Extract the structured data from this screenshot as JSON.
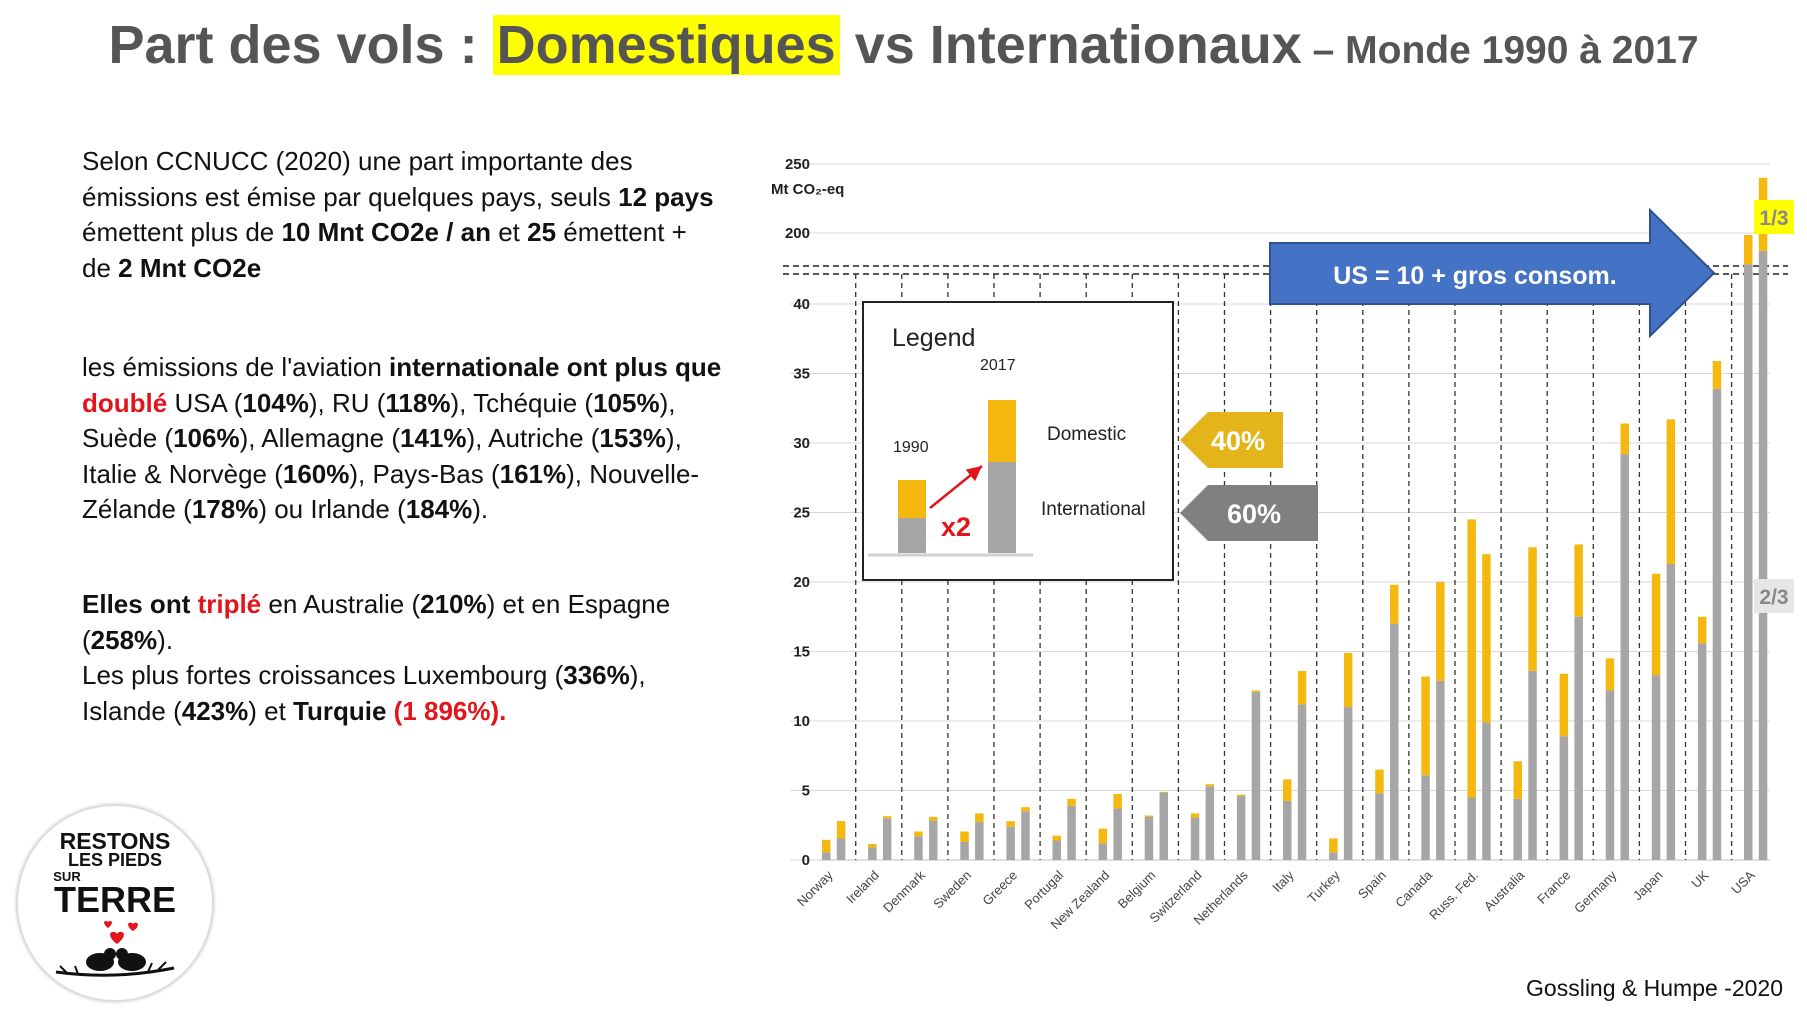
{
  "title": {
    "prefix": "Part des vols : ",
    "highlight": "Domestiques",
    "middle": " vs Internationaux",
    "suffix": " – Monde 1990 à 2017"
  },
  "text": {
    "p1": [
      {
        "t": "Selon CCNUCC (2020) une part importante des émissions est émise par quelques pays, seuls "
      },
      {
        "t": "12 pays",
        "b": true
      },
      {
        "t": " émettent plus de "
      },
      {
        "t": "10 Mnt CO2e / an",
        "b": true
      },
      {
        "t": " et "
      },
      {
        "t": "25",
        "b": true
      },
      {
        "t": " émettent + de "
      },
      {
        "t": "2 Mnt CO2e",
        "b": true
      }
    ],
    "p2": [
      {
        "t": "les émissions de l'aviation "
      },
      {
        "t": "internationale ont plus que ",
        "b": true
      },
      {
        "t": "doublé",
        "r": true
      },
      {
        "t": " USA ("
      },
      {
        "t": "104%",
        "b": true
      },
      {
        "t": "), RU ("
      },
      {
        "t": "118%",
        "b": true
      },
      {
        "t": "), Tchéquie ("
      },
      {
        "t": "105%",
        "b": true
      },
      {
        "t": "), Suède ("
      },
      {
        "t": "106%",
        "b": true
      },
      {
        "t": "), Allemagne ("
      },
      {
        "t": "141%",
        "b": true
      },
      {
        "t": "), Autriche ("
      },
      {
        "t": "153%",
        "b": true
      },
      {
        "t": "), Italie & Norvège ("
      },
      {
        "t": "160%",
        "b": true
      },
      {
        "t": "), Pays-Bas ("
      },
      {
        "t": "161%",
        "b": true
      },
      {
        "t": "), Nouvelle-Zélande ("
      },
      {
        "t": "178%",
        "b": true
      },
      {
        "t": ") ou Irlande ("
      },
      {
        "t": "184%",
        "b": true
      },
      {
        "t": ")."
      }
    ],
    "p3a": [
      {
        "t": "Elles ont ",
        "b": true
      },
      {
        "t": "triplé",
        "r": true
      },
      {
        "t": " en Australie ("
      },
      {
        "t": "210%",
        "b": true
      },
      {
        "t": ") et en Espagne ("
      },
      {
        "t": "258%",
        "b": true
      },
      {
        "t": ")."
      }
    ],
    "p3b": [
      {
        "t": "Les plus fortes croissances Luxembourg ("
      },
      {
        "t": "336%",
        "b": true
      },
      {
        "t": "), Islande ("
      },
      {
        "t": "423%",
        "b": true
      },
      {
        "t": ") et "
      },
      {
        "t": "Turquie",
        "b": true
      },
      {
        "t": " (1 896%).",
        "r": true
      }
    ]
  },
  "logo": {
    "l1": "RESTONS",
    "l2": "LES PIEDS",
    "l3": "SUR",
    "l4": "TERRE"
  },
  "source": "Gossling & Humpe -2020",
  "colors": {
    "domestic": "#f4b80f",
    "international": "#a6a6a6",
    "arrow": "#4472c4",
    "legend_dom": "#e3b51a",
    "legend_int": "#808080"
  },
  "callouts": {
    "us_arrow": "US = 10 + gros consom.",
    "dom_pct": "40%",
    "int_pct": "60%",
    "usa_dom_share": "1/3",
    "usa_int_share": "2/3"
  },
  "legend": {
    "title": "Legend",
    "year1": "1990",
    "year2": "2017",
    "domestic": "Domestic",
    "international": "International",
    "factor": "x2"
  },
  "chart_data": {
    "type": "bar",
    "ylabel": "Mt CO₂-eq",
    "yticks_lower": [
      0,
      5,
      10,
      15,
      20,
      25,
      30,
      35,
      40
    ],
    "yticks_upper": [
      200,
      250
    ],
    "axis_break": true,
    "ylim": [
      0,
      250
    ],
    "series_names": [
      "Domestic",
      "International"
    ],
    "countries": [
      {
        "name": "Norway",
        "b1990": [
          0.55,
          0.9
        ],
        "b2017": [
          1.55,
          1.25
        ]
      },
      {
        "name": "Ireland",
        "b1990": [
          0.9,
          0.25
        ],
        "b2017": [
          3.0,
          0.15
        ]
      },
      {
        "name": "Denmark",
        "b1990": [
          1.7,
          0.35
        ],
        "b2017": [
          2.85,
          0.25
        ]
      },
      {
        "name": "Sweden",
        "b1990": [
          1.3,
          0.75
        ],
        "b2017": [
          2.75,
          0.6
        ]
      },
      {
        "name": "Greece",
        "b1990": [
          2.4,
          0.4
        ],
        "b2017": [
          3.5,
          0.3
        ]
      },
      {
        "name": "Portugal",
        "b1990": [
          1.4,
          0.35
        ],
        "b2017": [
          3.9,
          0.5
        ]
      },
      {
        "name": "New Zealand",
        "b1990": [
          1.2,
          1.05
        ],
        "b2017": [
          3.7,
          1.05
        ]
      },
      {
        "name": "Belgium",
        "b1990": [
          3.1,
          0.1
        ],
        "b2017": [
          4.85,
          0.05
        ]
      },
      {
        "name": "Switzerland",
        "b1990": [
          3.05,
          0.3
        ],
        "b2017": [
          5.3,
          0.15
        ]
      },
      {
        "name": "Netherlands",
        "b1990": [
          4.6,
          0.1
        ],
        "b2017": [
          12.1,
          0.1
        ]
      },
      {
        "name": "Italy",
        "b1990": [
          4.25,
          1.55
        ],
        "b2017": [
          11.2,
          2.4
        ]
      },
      {
        "name": "Turkey",
        "b1990": [
          0.55,
          1.0
        ],
        "b2017": [
          11.0,
          3.9
        ]
      },
      {
        "name": "Spain",
        "b1990": [
          4.8,
          1.7
        ],
        "b2017": [
          17.0,
          2.8
        ]
      },
      {
        "name": "Canada",
        "b1990": [
          6.1,
          7.1
        ],
        "b2017": [
          12.9,
          7.1
        ]
      },
      {
        "name": "Russ. Fed.",
        "b1990": [
          4.5,
          20.0
        ],
        "b2017": [
          9.9,
          12.1
        ]
      },
      {
        "name": "Australia",
        "b1990": [
          4.4,
          2.7
        ],
        "b2017": [
          13.6,
          8.9
        ]
      },
      {
        "name": "France",
        "b1990": [
          8.9,
          4.5
        ],
        "b2017": [
          17.5,
          5.2
        ]
      },
      {
        "name": "Germany",
        "b1990": [
          12.2,
          2.3
        ],
        "b2017": [
          29.2,
          2.2
        ]
      },
      {
        "name": "Japan",
        "b1990": [
          13.3,
          7.3
        ],
        "b2017": [
          21.3,
          10.4
        ]
      },
      {
        "name": "UK",
        "b1990": [
          15.6,
          1.9
        ],
        "b2017": [
          33.9,
          2.0
        ]
      },
      {
        "name": "USA",
        "b1990": [
          129.4,
          66.1
        ],
        "b2017": [
          159.7,
          80.3
        ]
      }
    ]
  }
}
